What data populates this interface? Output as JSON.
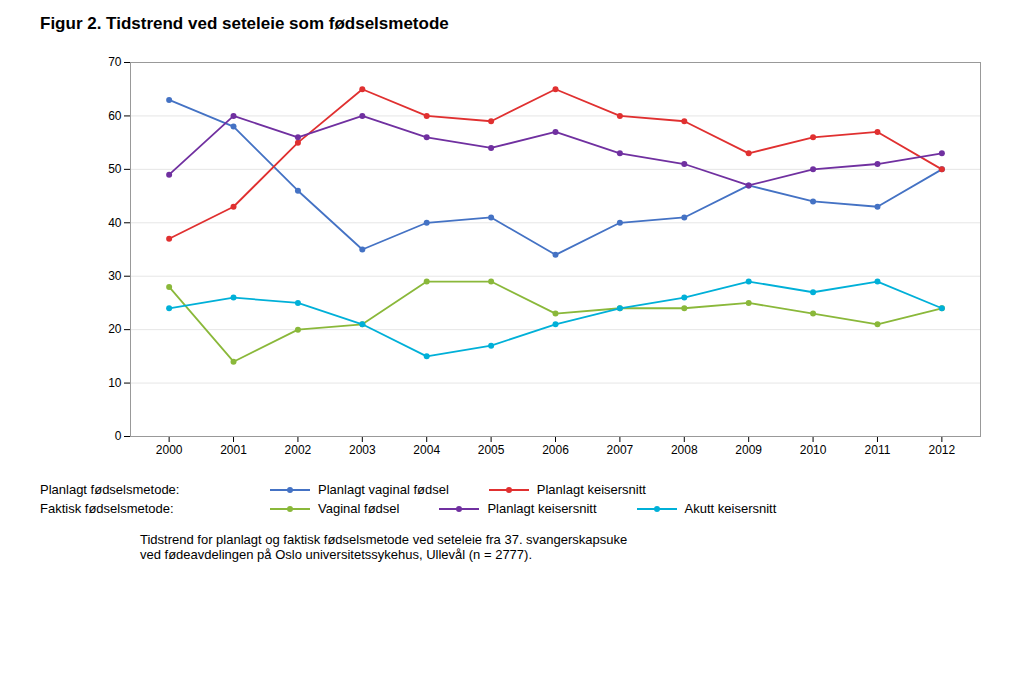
{
  "chart_data": {
    "type": "line",
    "title": "Figur 2. Tidstrend ved seteleie som fødselsmetode",
    "x": [
      2000,
      2001,
      2002,
      2003,
      2004,
      2005,
      2006,
      2007,
      2008,
      2009,
      2010,
      2011,
      2012
    ],
    "series": [
      {
        "name": "Planlagt vaginal fødsel",
        "group": "Planlagt fødselsmetode:",
        "color": "#4472C4",
        "values": [
          63,
          58,
          46,
          35,
          40,
          41,
          34,
          40,
          41,
          47,
          44,
          43,
          50
        ]
      },
      {
        "name": "Planlagt keisersnitt",
        "group": "Planlagt fødselsmetode:",
        "color": "#E03030",
        "values": [
          37,
          43,
          55,
          65,
          60,
          59,
          65,
          60,
          59,
          53,
          56,
          57,
          50
        ]
      },
      {
        "name": "Vaginal fødsel",
        "group": "Faktisk fødselsmetode:",
        "color": "#8AB83A",
        "values": [
          28,
          14,
          20,
          21,
          29,
          29,
          23,
          24,
          24,
          25,
          23,
          21,
          24
        ]
      },
      {
        "name": "Planlagt keisersnitt",
        "group": "Faktisk fødselsmetode:",
        "color": "#7030A0",
        "values": [
          49,
          60,
          56,
          60,
          56,
          54,
          57,
          53,
          51,
          47,
          50,
          51,
          53
        ]
      },
      {
        "name": "Akutt keisersnitt",
        "group": "Faktisk fødselsmetode:",
        "color": "#00B0D8",
        "values": [
          24,
          26,
          25,
          21,
          15,
          17,
          21,
          24,
          26,
          29,
          27,
          29,
          24
        ]
      }
    ],
    "xlim": [
      1999.4,
      2012.6
    ],
    "xticks": [
      2000,
      2001,
      2002,
      2003,
      2004,
      2005,
      2006,
      2007,
      2008,
      2009,
      2010,
      2011,
      2012
    ],
    "ylim": [
      0,
      70
    ],
    "yticks": [
      0,
      10,
      20,
      30,
      40,
      50,
      60,
      70
    ],
    "grid": true,
    "marker": "circle",
    "legend": "bottom",
    "caption": [
      "Tidstrend for planlagt og faktisk fødselsmetode ved seteleie fra 37. svangerskapsuke",
      "ved fødeavdelingen på Oslo universitetssykehus, Ullevål (n = 2777)."
    ]
  }
}
